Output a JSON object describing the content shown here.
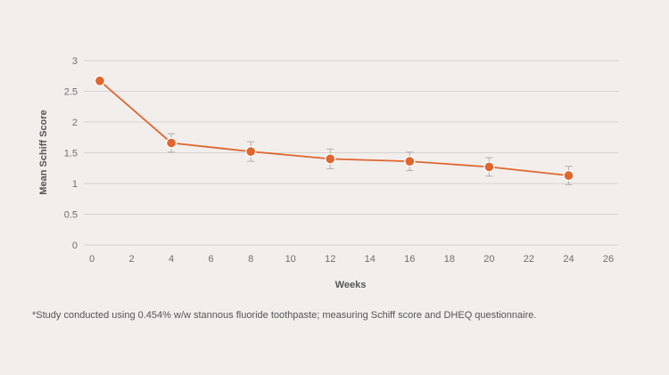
{
  "colors": {
    "background": "#f2eeec",
    "series": "#e0662e",
    "gridline": "#d6d2d0",
    "errorbar": "#b3aeab"
  },
  "chart_data": {
    "type": "line",
    "title": "",
    "xlabel": "Weeks",
    "ylabel": "Mean Schiff Score",
    "xlim": [
      0,
      26
    ],
    "ylim": [
      0,
      3
    ],
    "xticks": [
      0,
      2,
      4,
      6,
      8,
      10,
      12,
      14,
      16,
      18,
      20,
      22,
      24,
      26
    ],
    "yticks": [
      0,
      0.5,
      1,
      1.5,
      2,
      2.5,
      3
    ],
    "grid": "horizontal",
    "legend": "none",
    "series": [
      {
        "x": [
          0.4,
          4,
          8,
          12,
          16,
          20,
          24
        ],
        "y": [
          2.67,
          1.66,
          1.52,
          1.4,
          1.36,
          1.27,
          1.13
        ],
        "error": [
          0,
          0.15,
          0.16,
          0.16,
          0.15,
          0.15,
          0.15
        ]
      }
    ]
  },
  "footnote": "*Study conducted using 0.454% w/w stannous fluoride toothpaste; measuring Schiff score and DHEQ questionnaire."
}
